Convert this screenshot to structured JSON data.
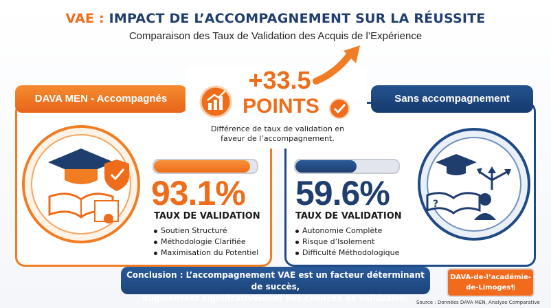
{
  "header": {
    "title_prefix": "VAE :",
    "title_rest": "IMPACT DE L’ACCOMPAGNEMENT SUR LA RÉUSSITE",
    "subtitle": "Comparaison des Taux de Validation des Acquis de l’Expérience"
  },
  "highlight": {
    "difference": "+33.5",
    "unit": "POINTS",
    "caption_line1": "Différence de taux de validation en",
    "caption_line2": "faveur de l’accompagnement."
  },
  "left": {
    "tab_label": "DAVA MEN - Accompagnés",
    "rate_text": "93.1%",
    "rate_label": "TAUX DE VALIDATION",
    "bullets": [
      "Soutien Structuré",
      "Méthodologie Clarifiée",
      "Maximisation du Potentiel"
    ],
    "color": "#ef6c1a"
  },
  "right": {
    "tab_label": "Sans accompagnement",
    "rate_text": "59.6%",
    "rate_label": "TAUX DE VALIDATION",
    "bullets": [
      "Autonomie Complète",
      "Risque d’Isolement",
      "Difficulté Méthodologique"
    ],
    "color": "#1f3e6e"
  },
  "conclusion": {
    "line1": "Conclusion : L’accompagnement VAE est un facteur déterminant de succès,",
    "line2": "augmentant significativement vos chances de validation."
  },
  "signature": {
    "line1": "DAVA-de-l’académie-",
    "line2": "de-Limoges¶"
  },
  "source": "Source : Données DAVA MEN, Analyse Comparative",
  "chart_data": {
    "type": "bar",
    "categories": [
      "DAVA MEN - Accompagnés",
      "Sans accompagnement"
    ],
    "values": [
      93.1,
      59.6
    ],
    "ylim": [
      0,
      100
    ],
    "difference": 33.5
  }
}
